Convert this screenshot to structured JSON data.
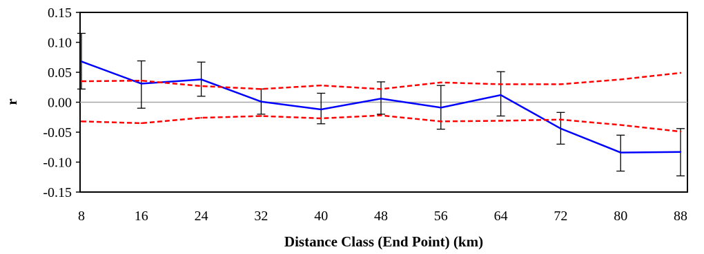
{
  "chart_data": {
    "type": "line",
    "title": "",
    "xlabel": "Distance Class (End Point) (km)",
    "ylabel": "r",
    "categories": [
      "8",
      "16",
      "24",
      "32",
      "40",
      "48",
      "56",
      "64",
      "72",
      "80",
      "88"
    ],
    "ylim": [
      -0.15,
      0.15
    ],
    "yticks": [
      "0.15",
      "0.10",
      "0.05",
      "0.00",
      "-0.05",
      "-0.10",
      "-0.15"
    ],
    "grid": false,
    "legend": "none",
    "series": [
      {
        "role": "observed",
        "style": "solid",
        "color": "#0000ff",
        "values": [
          0.068,
          0.031,
          0.038,
          0.001,
          -0.012,
          0.006,
          -0.009,
          0.012,
          -0.044,
          -0.084,
          -0.083
        ],
        "error_upper": [
          0.115,
          0.069,
          0.067,
          0.022,
          0.015,
          0.034,
          0.028,
          0.051,
          -0.017,
          -0.055,
          -0.044
        ],
        "error_lower": [
          0.022,
          -0.01,
          0.01,
          -0.02,
          -0.036,
          -0.02,
          -0.045,
          -0.023,
          -0.07,
          -0.115,
          -0.123
        ]
      },
      {
        "role": "upper-confidence",
        "style": "dashed",
        "color": "#ff0000",
        "values": [
          0.035,
          0.036,
          0.027,
          0.022,
          0.028,
          0.022,
          0.033,
          0.03,
          0.03,
          0.038,
          0.049
        ]
      },
      {
        "role": "lower-confidence",
        "style": "dashed",
        "color": "#ff0000",
        "values": [
          -0.032,
          -0.035,
          -0.026,
          -0.023,
          -0.027,
          -0.022,
          -0.032,
          -0.031,
          -0.029,
          -0.038,
          -0.049
        ]
      }
    ]
  }
}
